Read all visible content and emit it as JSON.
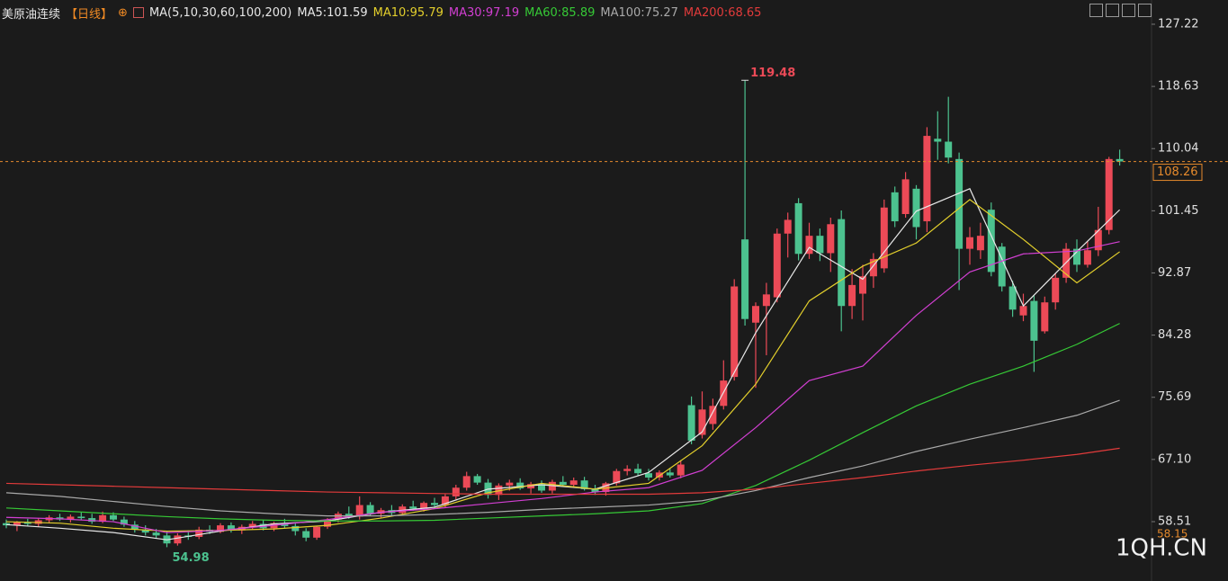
{
  "chart_data": {
    "type": "candlestick",
    "header": {
      "name": "美原油连续",
      "period": "【日线】",
      "ma_title": "MA(5,10,30,60,100,200)"
    },
    "ylim": [
      50.31,
      130.57
    ],
    "yticks": [
      127.22,
      118.63,
      110.04,
      101.45,
      92.87,
      84.28,
      75.69,
      {
        "value": 67.1,
        "label": "67.10"
      },
      58.51
    ],
    "up_color": "#ec4a57",
    "down_color": "#4cc28f",
    "bottom_marker": 58.15,
    "watermark": "1QH.CN",
    "ohlc": [
      [
        58.3,
        58.8,
        57.6,
        58.0
      ],
      [
        58.0,
        58.6,
        57.2,
        58.4
      ],
      [
        58.4,
        58.9,
        57.9,
        58.2
      ],
      [
        58.2,
        59.0,
        57.8,
        58.7
      ],
      [
        58.7,
        59.4,
        58.3,
        59.1
      ],
      [
        59.1,
        59.6,
        58.6,
        58.8
      ],
      [
        58.8,
        59.5,
        58.4,
        59.2
      ],
      [
        59.2,
        59.8,
        58.7,
        59.0
      ],
      [
        59.0,
        59.6,
        58.2,
        58.5
      ],
      [
        58.5,
        59.9,
        58.3,
        59.4
      ],
      [
        59.4,
        59.8,
        58.6,
        58.8
      ],
      [
        58.8,
        59.2,
        57.8,
        58.1
      ],
      [
        58.1,
        58.6,
        57.0,
        57.4
      ],
      [
        57.4,
        58.0,
        56.6,
        57.0
      ],
      [
        57.0,
        57.5,
        56.2,
        56.6
      ],
      [
        56.6,
        57.2,
        54.98,
        55.5
      ],
      [
        55.5,
        56.9,
        55.2,
        56.6
      ],
      [
        56.6,
        57.3,
        56.0,
        56.4
      ],
      [
        56.4,
        57.8,
        56.1,
        57.4
      ],
      [
        57.4,
        58.0,
        56.8,
        57.1
      ],
      [
        57.1,
        58.3,
        56.9,
        58.0
      ],
      [
        58.0,
        58.4,
        57.0,
        57.3
      ],
      [
        57.3,
        58.1,
        56.8,
        57.8
      ],
      [
        57.8,
        58.6,
        57.4,
        58.2
      ],
      [
        58.2,
        58.7,
        57.3,
        57.6
      ],
      [
        57.6,
        58.5,
        57.2,
        58.3
      ],
      [
        58.3,
        58.9,
        57.6,
        57.9
      ],
      [
        57.9,
        58.3,
        56.6,
        57.2
      ],
      [
        57.2,
        57.6,
        55.8,
        56.3
      ],
      [
        56.3,
        57.9,
        56.0,
        57.8
      ],
      [
        57.8,
        59.0,
        57.5,
        58.8
      ],
      [
        58.8,
        59.9,
        58.4,
        59.6
      ],
      [
        59.6,
        60.6,
        58.9,
        59.2
      ],
      [
        59.2,
        62.0,
        58.8,
        60.8
      ],
      [
        60.8,
        61.2,
        59.3,
        59.6
      ],
      [
        59.6,
        60.4,
        59.0,
        60.1
      ],
      [
        60.1,
        60.8,
        59.4,
        59.7
      ],
      [
        59.7,
        60.9,
        59.5,
        60.6
      ],
      [
        60.6,
        61.4,
        60.0,
        60.3
      ],
      [
        60.3,
        61.3,
        59.9,
        61.1
      ],
      [
        61.1,
        61.8,
        60.4,
        60.8
      ],
      [
        60.8,
        62.3,
        60.5,
        62.0
      ],
      [
        62.0,
        63.6,
        61.6,
        63.2
      ],
      [
        63.2,
        65.4,
        62.8,
        64.8
      ],
      [
        64.8,
        65.1,
        63.6,
        63.9
      ],
      [
        63.9,
        64.4,
        61.7,
        62.2
      ],
      [
        62.2,
        63.8,
        61.5,
        63.5
      ],
      [
        63.5,
        64.3,
        62.8,
        63.9
      ],
      [
        63.9,
        64.5,
        62.9,
        63.1
      ],
      [
        63.1,
        64.0,
        62.4,
        63.7
      ],
      [
        63.7,
        64.2,
        62.5,
        62.8
      ],
      [
        62.8,
        64.3,
        62.4,
        64.0
      ],
      [
        64.0,
        64.8,
        63.3,
        63.6
      ],
      [
        63.6,
        64.6,
        63.2,
        64.2
      ],
      [
        64.2,
        64.7,
        62.8,
        63.0
      ],
      [
        63.0,
        63.6,
        62.2,
        62.6
      ],
      [
        62.6,
        64.0,
        62.1,
        63.8
      ],
      [
        63.8,
        65.8,
        63.5,
        65.5
      ],
      [
        65.5,
        66.3,
        64.9,
        65.8
      ],
      [
        65.8,
        66.5,
        64.9,
        65.2
      ],
      [
        65.2,
        65.8,
        64.2,
        64.6
      ],
      [
        64.6,
        65.6,
        64.2,
        65.3
      ],
      [
        65.3,
        65.9,
        64.6,
        64.9
      ],
      [
        64.9,
        67.0,
        64.5,
        66.4
      ],
      [
        74.6,
        75.8,
        69.2,
        69.7
      ],
      [
        70.5,
        76.5,
        70.0,
        74.0
      ],
      [
        72.0,
        75.5,
        71.2,
        74.5
      ],
      [
        74.5,
        80.8,
        74.0,
        78.0
      ],
      [
        78.5,
        92.0,
        78.0,
        91.0
      ],
      [
        97.5,
        119.48,
        85.6,
        86.5
      ],
      [
        86.0,
        88.8,
        77.0,
        88.3
      ],
      [
        88.3,
        91.5,
        81.5,
        89.9
      ],
      [
        89.5,
        99.0,
        88.8,
        98.3
      ],
      [
        98.3,
        101.2,
        95.0,
        100.2
      ],
      [
        102.5,
        103.2,
        94.6,
        95.5
      ],
      [
        95.5,
        99.8,
        94.8,
        98.0
      ],
      [
        98.0,
        99.0,
        94.5,
        95.6
      ],
      [
        95.6,
        100.5,
        93.0,
        99.6
      ],
      [
        100.3,
        101.5,
        84.8,
        88.3
      ],
      [
        88.3,
        93.4,
        86.5,
        91.2
      ],
      [
        90.0,
        94.0,
        86.3,
        92.4
      ],
      [
        92.4,
        95.6,
        90.8,
        94.8
      ],
      [
        93.5,
        103.0,
        92.9,
        101.9
      ],
      [
        104.0,
        104.8,
        99.2,
        100.0
      ],
      [
        101.0,
        106.8,
        100.5,
        105.8
      ],
      [
        104.5,
        105.0,
        97.5,
        99.2
      ],
      [
        100.0,
        113.0,
        98.5,
        111.8
      ],
      [
        111.4,
        115.2,
        108.5,
        111.0
      ],
      [
        111.0,
        117.2,
        108.0,
        108.8
      ],
      [
        108.6,
        109.5,
        90.5,
        96.2
      ],
      [
        96.2,
        99.2,
        94.0,
        97.8
      ],
      [
        96.0,
        99.8,
        94.8,
        98.0
      ],
      [
        101.6,
        102.6,
        92.4,
        93.0
      ],
      [
        96.5,
        97.0,
        90.3,
        91.0
      ],
      [
        91.0,
        91.8,
        86.8,
        87.8
      ],
      [
        87.0,
        90.0,
        86.2,
        88.3
      ],
      [
        89.0,
        89.8,
        79.2,
        83.5
      ],
      [
        84.8,
        89.6,
        84.5,
        88.8
      ],
      [
        88.8,
        92.8,
        87.8,
        92.2
      ],
      [
        92.2,
        97.0,
        91.5,
        96.2
      ],
      [
        96.2,
        97.5,
        93.0,
        94.0
      ],
      [
        94.0,
        97.2,
        93.6,
        96.0
      ],
      [
        96.0,
        102.0,
        95.2,
        98.8
      ],
      [
        98.8,
        108.9,
        98.2,
        108.6
      ],
      [
        108.6,
        109.9,
        107.7,
        108.26
      ]
    ],
    "x": [
      0,
      5,
      10,
      15,
      20,
      25,
      30,
      35,
      40,
      45,
      50,
      55,
      60,
      65,
      70,
      75,
      80,
      85,
      90,
      95,
      100,
      104
    ],
    "series": [
      {
        "name": "MA5:101.59",
        "color": "#e8e8e8",
        "values": [
          58.1,
          57.6,
          57.0,
          56.0,
          57.2,
          58.2,
          58.6,
          59.8,
          60.5,
          63.0,
          63.6,
          63.0,
          65.3,
          70.9,
          84.6,
          96.4,
          92.0,
          101.4,
          104.5,
          88.3,
          95.8,
          101.59
        ]
      },
      {
        "name": "MA10:95.79",
        "color": "#e3cf2c",
        "values": [
          58.5,
          58.3,
          57.6,
          57.2,
          57.3,
          57.5,
          58.0,
          59.0,
          60.3,
          62.5,
          63.8,
          63.0,
          63.8,
          69.0,
          77.5,
          89.0,
          93.8,
          97.0,
          103.0,
          97.5,
          91.5,
          95.79
        ]
      },
      {
        "name": "MA30:97.19",
        "color": "#d23fd2",
        "values": [
          59.1,
          58.9,
          58.5,
          57.0,
          57.3,
          58.0,
          58.8,
          59.8,
          60.3,
          61.0,
          61.7,
          62.6,
          63.2,
          65.6,
          71.5,
          78.0,
          80.0,
          87.0,
          93.0,
          95.5,
          95.9,
          97.19
        ]
      },
      {
        "name": "MA60:85.89",
        "color": "#36c936",
        "values": [
          60.4,
          60.0,
          59.6,
          59.2,
          58.9,
          58.7,
          58.6,
          58.6,
          58.7,
          59.0,
          59.3,
          59.6,
          60.0,
          61.0,
          63.5,
          67.0,
          70.8,
          74.5,
          77.5,
          80.0,
          83.0,
          85.89
        ]
      },
      {
        "name": "MA100:75.27",
        "color": "#a9a9a9",
        "values": [
          62.5,
          62.0,
          61.3,
          60.6,
          60.0,
          59.6,
          59.3,
          59.3,
          59.5,
          59.8,
          60.2,
          60.5,
          60.8,
          61.4,
          62.8,
          64.6,
          66.2,
          68.2,
          69.9,
          71.5,
          73.2,
          75.27
        ]
      },
      {
        "name": "MA200:68.65",
        "color": "#e23b3b",
        "values": [
          63.8,
          63.6,
          63.4,
          63.2,
          63.0,
          62.8,
          62.6,
          62.5,
          62.4,
          62.3,
          62.3,
          62.3,
          62.3,
          62.5,
          63.0,
          63.8,
          64.6,
          65.5,
          66.3,
          67.0,
          67.8,
          68.65
        ]
      }
    ]
  }
}
